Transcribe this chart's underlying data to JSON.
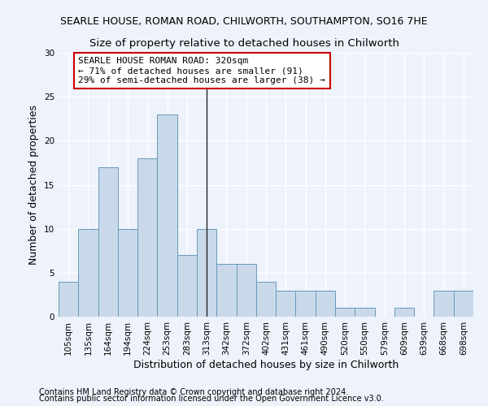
{
  "title1": "SEARLE HOUSE, ROMAN ROAD, CHILWORTH, SOUTHAMPTON, SO16 7HE",
  "title2": "Size of property relative to detached houses in Chilworth",
  "xlabel": "Distribution of detached houses by size in Chilworth",
  "ylabel": "Number of detached properties",
  "categories": [
    "105sqm",
    "135sqm",
    "164sqm",
    "194sqm",
    "224sqm",
    "253sqm",
    "283sqm",
    "313sqm",
    "342sqm",
    "372sqm",
    "402sqm",
    "431sqm",
    "461sqm",
    "490sqm",
    "520sqm",
    "550sqm",
    "579sqm",
    "609sqm",
    "639sqm",
    "668sqm",
    "698sqm"
  ],
  "values": [
    4,
    10,
    17,
    10,
    18,
    23,
    7,
    10,
    6,
    6,
    4,
    3,
    3,
    3,
    1,
    1,
    0,
    1,
    0,
    3,
    3
  ],
  "bar_color": "#c9d9ea",
  "bar_edge_color": "#6699bb",
  "highlight_index": 7,
  "highlight_line_color": "#222222",
  "annotation_text": "SEARLE HOUSE ROMAN ROAD: 320sqm\n← 71% of detached houses are smaller (91)\n29% of semi-detached houses are larger (38) →",
  "annotation_box_color": "#ffffff",
  "annotation_box_edge_color": "#cc0000",
  "ylim": [
    0,
    30
  ],
  "yticks": [
    0,
    5,
    10,
    15,
    20,
    25,
    30
  ],
  "background_color": "#eef2fb",
  "grid_color": "#ffffff",
  "footer1": "Contains HM Land Registry data © Crown copyright and database right 2024.",
  "footer2": "Contains public sector information licensed under the Open Government Licence v3.0.",
  "title1_fontsize": 9,
  "title2_fontsize": 9.5,
  "xlabel_fontsize": 9,
  "ylabel_fontsize": 9,
  "tick_fontsize": 7.5,
  "annotation_fontsize": 8,
  "footer_fontsize": 7
}
